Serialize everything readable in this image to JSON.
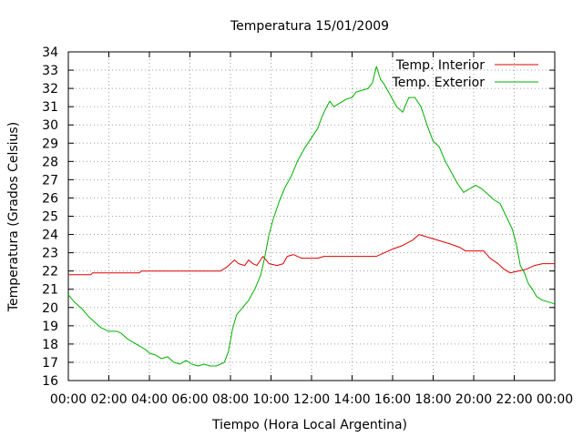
{
  "chart_data": {
    "type": "line",
    "title": "Temperatura 15/01/2009",
    "xlabel": "Tiempo (Hora Local Argentina)",
    "ylabel": "Temperatura (Grados Celsius)",
    "xlim": [
      0,
      24
    ],
    "ylim": [
      16,
      34
    ],
    "x_ticks": [
      "00:00",
      "02:00",
      "04:00",
      "06:00",
      "08:00",
      "10:00",
      "12:00",
      "14:00",
      "16:00",
      "18:00",
      "20:00",
      "22:00",
      "00:00"
    ],
    "y_ticks": [
      "16",
      "17",
      "18",
      "19",
      "20",
      "21",
      "22",
      "23",
      "24",
      "25",
      "26",
      "27",
      "28",
      "29",
      "30",
      "31",
      "32",
      "33",
      "34"
    ],
    "grid": true,
    "legend_position": "top-right",
    "series": [
      {
        "name": "Temp. Interior",
        "color": "#e00000",
        "points": [
          [
            0.0,
            21.8
          ],
          [
            1.1,
            21.8
          ],
          [
            1.2,
            21.9
          ],
          [
            3.5,
            21.9
          ],
          [
            3.6,
            22.0
          ],
          [
            7.5,
            22.0
          ],
          [
            7.8,
            22.2
          ],
          [
            8.2,
            22.6
          ],
          [
            8.4,
            22.4
          ],
          [
            8.7,
            22.3
          ],
          [
            8.9,
            22.6
          ],
          [
            9.1,
            22.4
          ],
          [
            9.3,
            22.3
          ],
          [
            9.6,
            22.8
          ],
          [
            9.9,
            22.4
          ],
          [
            10.3,
            22.3
          ],
          [
            10.6,
            22.4
          ],
          [
            10.8,
            22.8
          ],
          [
            11.1,
            22.9
          ],
          [
            11.5,
            22.7
          ],
          [
            12.0,
            22.7
          ],
          [
            12.3,
            22.7
          ],
          [
            12.6,
            22.8
          ],
          [
            13.5,
            22.8
          ],
          [
            15.2,
            22.8
          ],
          [
            15.6,
            23.0
          ],
          [
            16.0,
            23.2
          ],
          [
            16.5,
            23.4
          ],
          [
            17.0,
            23.7
          ],
          [
            17.3,
            24.0
          ],
          [
            17.6,
            23.9
          ],
          [
            18.2,
            23.7
          ],
          [
            18.8,
            23.5
          ],
          [
            19.3,
            23.3
          ],
          [
            19.6,
            23.1
          ],
          [
            20.5,
            23.1
          ],
          [
            20.8,
            22.7
          ],
          [
            21.2,
            22.4
          ],
          [
            21.5,
            22.1
          ],
          [
            21.8,
            21.9
          ],
          [
            22.2,
            22.0
          ],
          [
            22.6,
            22.1
          ],
          [
            23.0,
            22.3
          ],
          [
            23.4,
            22.4
          ],
          [
            24.0,
            22.4
          ]
        ]
      },
      {
        "name": "Temp. Exterior",
        "color": "#00b000",
        "points": [
          [
            0.0,
            20.7
          ],
          [
            0.3,
            20.3
          ],
          [
            0.7,
            19.9
          ],
          [
            1.0,
            19.5
          ],
          [
            1.3,
            19.2
          ],
          [
            1.6,
            18.9
          ],
          [
            2.0,
            18.7
          ],
          [
            2.4,
            18.7
          ],
          [
            2.6,
            18.6
          ],
          [
            2.9,
            18.3
          ],
          [
            3.2,
            18.1
          ],
          [
            3.5,
            17.9
          ],
          [
            3.8,
            17.7
          ],
          [
            4.0,
            17.5
          ],
          [
            4.3,
            17.4
          ],
          [
            4.6,
            17.2
          ],
          [
            4.9,
            17.3
          ],
          [
            5.2,
            17.0
          ],
          [
            5.5,
            16.9
          ],
          [
            5.8,
            17.1
          ],
          [
            6.1,
            16.9
          ],
          [
            6.4,
            16.8
          ],
          [
            6.7,
            16.9
          ],
          [
            7.0,
            16.8
          ],
          [
            7.3,
            16.8
          ],
          [
            7.5,
            16.9
          ],
          [
            7.7,
            17.0
          ],
          [
            7.9,
            17.6
          ],
          [
            8.1,
            18.8
          ],
          [
            8.3,
            19.6
          ],
          [
            8.6,
            20.0
          ],
          [
            8.9,
            20.4
          ],
          [
            9.2,
            21.0
          ],
          [
            9.5,
            21.8
          ],
          [
            9.7,
            22.8
          ],
          [
            9.9,
            24.0
          ],
          [
            10.1,
            24.8
          ],
          [
            10.4,
            25.8
          ],
          [
            10.7,
            26.6
          ],
          [
            11.0,
            27.2
          ],
          [
            11.3,
            28.0
          ],
          [
            11.7,
            28.8
          ],
          [
            12.0,
            29.3
          ],
          [
            12.3,
            29.8
          ],
          [
            12.5,
            30.4
          ],
          [
            12.7,
            30.9
          ],
          [
            12.9,
            31.3
          ],
          [
            13.1,
            31.0
          ],
          [
            13.4,
            31.2
          ],
          [
            13.7,
            31.4
          ],
          [
            14.0,
            31.5
          ],
          [
            14.2,
            31.8
          ],
          [
            14.5,
            31.9
          ],
          [
            14.8,
            32.0
          ],
          [
            15.0,
            32.3
          ],
          [
            15.2,
            33.2
          ],
          [
            15.4,
            32.5
          ],
          [
            15.6,
            32.2
          ],
          [
            15.8,
            31.8
          ],
          [
            16.0,
            31.4
          ],
          [
            16.2,
            31.0
          ],
          [
            16.5,
            30.7
          ],
          [
            16.8,
            31.5
          ],
          [
            17.1,
            31.5
          ],
          [
            17.4,
            31.0
          ],
          [
            17.7,
            30.0
          ],
          [
            18.0,
            29.1
          ],
          [
            18.3,
            28.8
          ],
          [
            18.6,
            28.0
          ],
          [
            18.9,
            27.4
          ],
          [
            19.2,
            26.8
          ],
          [
            19.5,
            26.3
          ],
          [
            19.8,
            26.5
          ],
          [
            20.1,
            26.7
          ],
          [
            20.4,
            26.5
          ],
          [
            20.7,
            26.2
          ],
          [
            21.0,
            25.9
          ],
          [
            21.3,
            25.7
          ],
          [
            21.6,
            25.0
          ],
          [
            21.9,
            24.3
          ],
          [
            22.1,
            23.5
          ],
          [
            22.3,
            22.3
          ],
          [
            22.5,
            21.9
          ],
          [
            22.7,
            21.3
          ],
          [
            22.9,
            21.0
          ],
          [
            23.1,
            20.6
          ],
          [
            23.4,
            20.4
          ],
          [
            23.7,
            20.3
          ],
          [
            24.0,
            20.2
          ]
        ]
      }
    ]
  }
}
